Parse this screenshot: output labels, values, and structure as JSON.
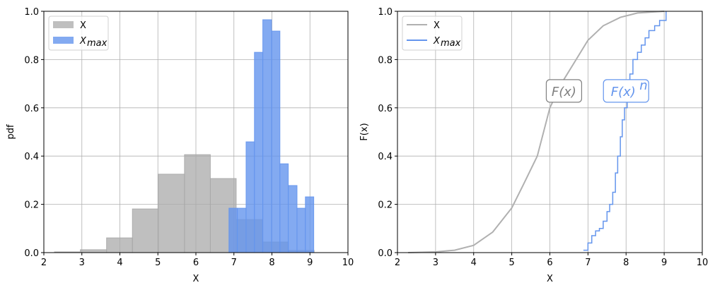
{
  "chart_data": [
    {
      "type": "bar",
      "subtype": "histogram",
      "xlabel": "X",
      "ylabel": "pdf",
      "xlim": [
        2,
        10
      ],
      "ylim": [
        0,
        1.0
      ],
      "xticks": [
        "2",
        "3",
        "4",
        "5",
        "6",
        "7",
        "8",
        "9",
        "10"
      ],
      "yticks": [
        "0.0",
        "0.2",
        "0.4",
        "0.6",
        "0.8",
        "1.0"
      ],
      "grid": true,
      "legend_position": "upper left",
      "series": [
        {
          "name": "X",
          "legend_label": "X",
          "color": "#a9a9a9",
          "alpha": 0.75,
          "bin_edges": [
            2.28,
            2.96,
            3.65,
            4.33,
            5.01,
            5.7,
            6.38,
            7.06,
            7.75,
            8.43,
            9.11
          ],
          "values": [
            0.003,
            0.012,
            0.061,
            0.181,
            0.325,
            0.406,
            0.307,
            0.137,
            0.044,
            0.009
          ]
        },
        {
          "name": "Xmax",
          "legend_label": "X",
          "legend_subscript": "max",
          "color": "#6495ed",
          "alpha": 0.8,
          "bin_edges": [
            6.87,
            7.09,
            7.32,
            7.54,
            7.76,
            7.99,
            8.21,
            8.43,
            8.66,
            8.88,
            9.1
          ],
          "values": [
            0.184,
            0.184,
            0.459,
            0.83,
            0.965,
            0.918,
            0.368,
            0.278,
            0.184,
            0.231
          ]
        }
      ]
    },
    {
      "type": "line",
      "xlabel": "X",
      "ylabel": "F(x)",
      "xlim": [
        2,
        10
      ],
      "ylim": [
        0,
        1.0
      ],
      "xticks": [
        "2",
        "3",
        "4",
        "5",
        "6",
        "7",
        "8",
        "9",
        "10"
      ],
      "yticks": [
        "0.0",
        "0.2",
        "0.4",
        "0.6",
        "0.8",
        "1.0"
      ],
      "grid": true,
      "legend_position": "upper left",
      "series": [
        {
          "name": "X",
          "legend_label": "X",
          "color": "#b0b0b0",
          "step": false,
          "x": [
            2.28,
            3.0,
            3.5,
            4.0,
            4.5,
            5.0,
            5.3,
            5.67,
            6.0,
            6.3,
            6.69,
            7.0,
            7.4,
            7.85,
            8.3,
            9.0
          ],
          "y": [
            0.0,
            0.003,
            0.01,
            0.03,
            0.085,
            0.185,
            0.28,
            0.4,
            0.6,
            0.7,
            0.8,
            0.88,
            0.94,
            0.975,
            0.993,
            1.0
          ]
        },
        {
          "name": "Xmax",
          "legend_label": "X",
          "legend_subscript": "max",
          "color": "#6495ed",
          "step": true,
          "x": [
            6.88,
            7.0,
            7.1,
            7.2,
            7.3,
            7.4,
            7.5,
            7.57,
            7.65,
            7.72,
            7.78,
            7.85,
            7.9,
            7.96,
            8.03,
            8.1,
            8.18,
            8.3,
            8.4,
            8.5,
            8.6,
            8.75,
            8.88,
            9.05
          ],
          "y": [
            0.01,
            0.04,
            0.07,
            0.09,
            0.1,
            0.13,
            0.17,
            0.2,
            0.25,
            0.33,
            0.4,
            0.48,
            0.55,
            0.6,
            0.68,
            0.74,
            0.8,
            0.83,
            0.86,
            0.89,
            0.92,
            0.94,
            0.962,
            1.0
          ]
        }
      ],
      "annotations": [
        {
          "text": "F(x)",
          "x": 6.37,
          "y": 0.67,
          "color": "#808080"
        },
        {
          "text": "F(x)",
          "superscript": "n",
          "x": 8.0,
          "y": 0.67,
          "color": "#6495ed"
        }
      ]
    }
  ]
}
